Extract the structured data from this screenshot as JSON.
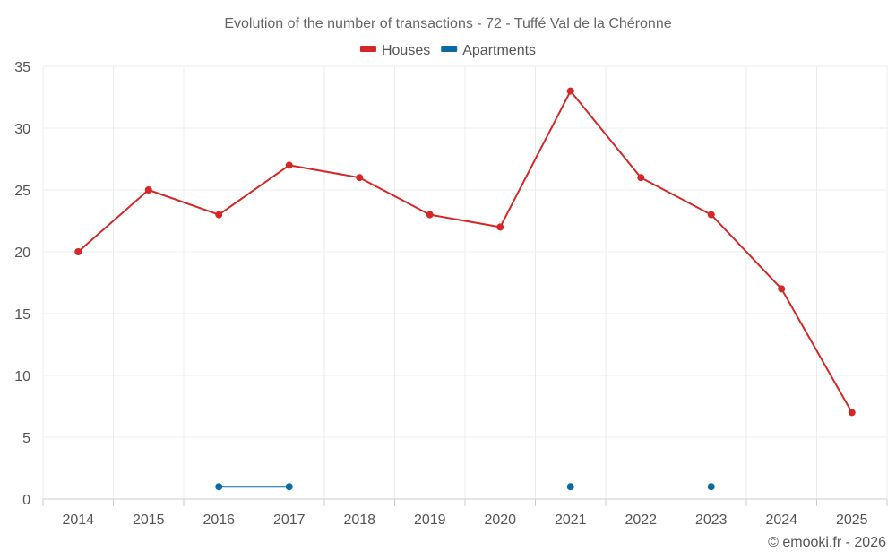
{
  "chart_data": {
    "type": "line",
    "title": "Evolution of the number of transactions - 72 - Tuffé Val de la Chéronne",
    "categories": [
      "2014",
      "2015",
      "2016",
      "2017",
      "2018",
      "2019",
      "2020",
      "2021",
      "2022",
      "2023",
      "2024",
      "2025"
    ],
    "series": [
      {
        "name": "Houses",
        "color": "#d62728",
        "values": [
          20,
          25,
          23,
          27,
          26,
          23,
          22,
          33,
          26,
          23,
          17,
          7
        ]
      },
      {
        "name": "Apartments",
        "color": "#0a6aa1",
        "values": [
          null,
          null,
          1,
          1,
          null,
          null,
          null,
          1,
          null,
          1,
          null,
          null
        ]
      }
    ],
    "ylim": [
      0,
      35
    ],
    "yticks": [
      0,
      5,
      10,
      15,
      20,
      25,
      30,
      35
    ],
    "grid": true,
    "legend_position": "top-center",
    "credit": "© emooki.fr - 2026"
  }
}
